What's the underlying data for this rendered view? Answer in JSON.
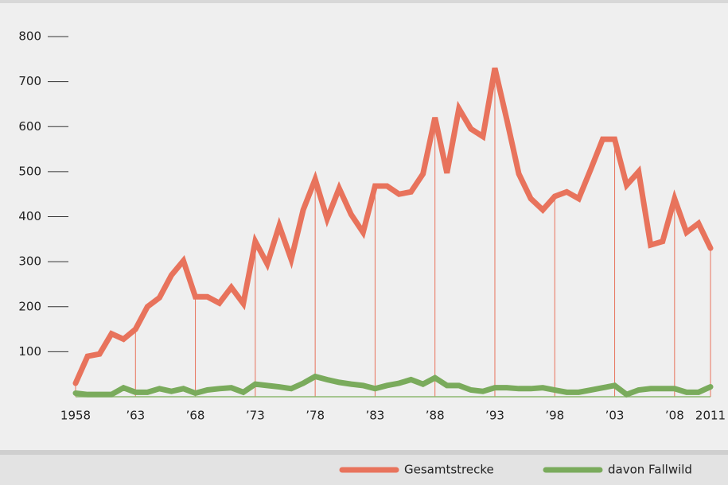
{
  "chart_data": {
    "type": "line",
    "x": [
      1958,
      1959,
      1960,
      1961,
      1962,
      1963,
      1964,
      1965,
      1966,
      1967,
      1968,
      1969,
      1970,
      1971,
      1972,
      1973,
      1974,
      1975,
      1976,
      1977,
      1978,
      1979,
      1980,
      1981,
      1982,
      1983,
      1984,
      1985,
      1986,
      1987,
      1988,
      1989,
      1990,
      1991,
      1992,
      1993,
      1994,
      1995,
      1996,
      1997,
      1998,
      1999,
      2000,
      2001,
      2002,
      2003,
      2004,
      2005,
      2006,
      2007,
      2008,
      2009,
      2010,
      2011
    ],
    "series": [
      {
        "name": "Gesamtstrecke",
        "color": "#e8735c",
        "values": [
          30,
          90,
          95,
          140,
          128,
          150,
          200,
          220,
          270,
          302,
          222,
          222,
          208,
          243,
          207,
          345,
          295,
          380,
          305,
          415,
          483,
          395,
          463,
          405,
          365,
          468,
          468,
          450,
          455,
          495,
          620,
          497,
          640,
          595,
          578,
          730,
          615,
          495,
          440,
          415,
          445,
          455,
          440,
          505,
          572,
          572,
          470,
          500,
          337,
          345,
          440,
          365,
          385,
          330
        ]
      },
      {
        "name": "davon Fallwild",
        "color": "#7aab5c",
        "values": [
          8,
          5,
          5,
          5,
          20,
          10,
          10,
          18,
          12,
          18,
          8,
          15,
          18,
          20,
          10,
          28,
          25,
          22,
          18,
          30,
          45,
          38,
          32,
          28,
          25,
          18,
          25,
          30,
          38,
          28,
          42,
          25,
          25,
          15,
          12,
          20,
          20,
          18,
          18,
          20,
          15,
          10,
          10,
          15,
          20,
          25,
          5,
          15,
          18,
          18,
          18,
          10,
          10,
          22
        ]
      }
    ],
    "xlim": [
      1958,
      2011
    ],
    "xticks": [
      1958,
      {
        "value": 1963,
        "label": "’63"
      },
      {
        "value": 1968,
        "label": "’68"
      },
      {
        "value": 1973,
        "label": "’73"
      },
      {
        "value": 1978,
        "label": "’78"
      },
      {
        "value": 1983,
        "label": "’83"
      },
      {
        "value": 1988,
        "label": "’88"
      },
      {
        "value": 1993,
        "label": "’93"
      },
      {
        "value": 1998,
        "label": "’98"
      },
      {
        "value": 2003,
        "label": "’03"
      },
      {
        "value": 2008,
        "label": "’08"
      },
      2011
    ],
    "ylim": [
      0,
      800
    ],
    "yticks": [
      100,
      200,
      300,
      400,
      500,
      600,
      700,
      800
    ]
  }
}
